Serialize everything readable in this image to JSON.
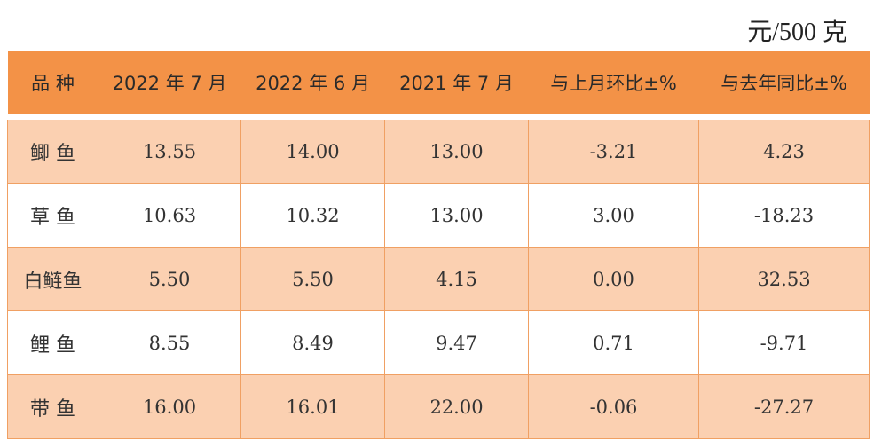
{
  "unit_label": "元/500 克",
  "table": {
    "headers": [
      "品 种",
      "2022 年 7 月",
      "2022 年 6 月",
      "2021 年 7 月",
      "与上月环比±%",
      "与去年同比±%"
    ],
    "rows": [
      [
        "鲫 鱼",
        "13.55",
        "14.00",
        "13.00",
        "-3.21",
        "4.23"
      ],
      [
        "草 鱼",
        "10.63",
        "10.32",
        "13.00",
        "3.00",
        "-18.23"
      ],
      [
        "白鲢鱼",
        "5.50",
        "5.50",
        "4.15",
        "0.00",
        "32.53"
      ],
      [
        "鲤 鱼",
        "8.55",
        "8.49",
        "9.47",
        "0.71",
        "-9.71"
      ],
      [
        "带 鱼",
        "16.00",
        "16.01",
        "22.00",
        "-0.06",
        "-27.27"
      ]
    ]
  },
  "colors": {
    "header_bg": "#f39247",
    "shaded_row_bg": "#fbd0b1",
    "plain_row_bg": "#ffffff",
    "border": "#f0a063"
  }
}
